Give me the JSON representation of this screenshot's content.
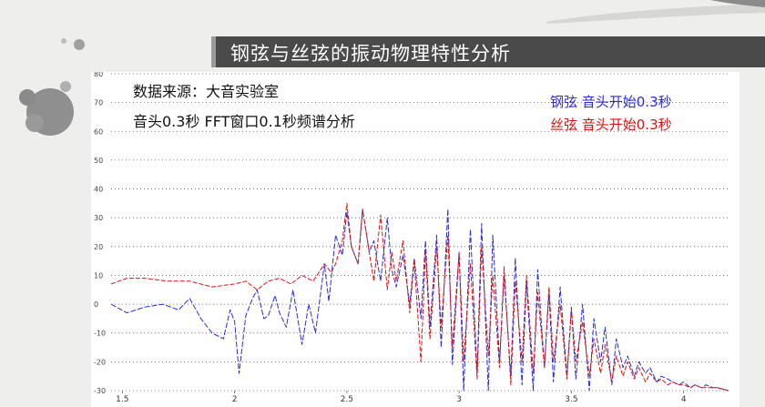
{
  "title": "钢弦与丝弦的振动物理特性分析",
  "notes": {
    "source": "数据来源：大音实验室",
    "method": "音头0.3秒 FFT窗口0.1秒频谱分析"
  },
  "colors": {
    "steel": "#2a2ae0",
    "silk": "#e01010",
    "title_bar": "#4a4a4a",
    "grid": "#555555"
  },
  "chart_data": {
    "type": "line",
    "title": "",
    "xlabel": "",
    "ylabel": "",
    "xlim": [
      1.45,
      4.2
    ],
    "ylim": [
      -30,
      80
    ],
    "x_ticks": [
      {
        "v": 1.5,
        "label": "1.5"
      },
      {
        "v": 2,
        "label": "2"
      },
      {
        "v": 2.5,
        "label": "2.5"
      },
      {
        "v": 3,
        "label": "3"
      },
      {
        "v": 3.5,
        "label": "3.5"
      },
      {
        "v": 4,
        "label": "4"
      }
    ],
    "y_ticks": [
      {
        "v": 80,
        "label": "80"
      },
      {
        "v": 70,
        "label": "70"
      },
      {
        "v": 60,
        "label": "60"
      },
      {
        "v": 50,
        "label": "50"
      },
      {
        "v": 40,
        "label": "40"
      },
      {
        "v": 30,
        "label": "30"
      },
      {
        "v": 20,
        "label": "20"
      },
      {
        "v": 10,
        "label": "10"
      },
      {
        "v": 0,
        "label": "0"
      },
      {
        "v": -10,
        "label": "-10"
      },
      {
        "v": -20,
        "label": "-20"
      },
      {
        "v": -30,
        "label": "-30"
      }
    ],
    "grid": "horizontal dotted",
    "legend": "top-right",
    "series": [
      {
        "name": "钢弦 音头开始0.3秒",
        "color": "#2a2ae0",
        "x": [
          1.45,
          1.52,
          1.6,
          1.68,
          1.75,
          1.8,
          1.85,
          1.9,
          1.95,
          1.98,
          2.0,
          2.02,
          2.05,
          2.08,
          2.1,
          2.13,
          2.15,
          2.18,
          2.2,
          2.23,
          2.26,
          2.3,
          2.33,
          2.36,
          2.4,
          2.42,
          2.45,
          2.48,
          2.5,
          2.52,
          2.55,
          2.57,
          2.6,
          2.62,
          2.65,
          2.68,
          2.7,
          2.72,
          2.75,
          2.78,
          2.8,
          2.83,
          2.85,
          2.87,
          2.9,
          2.92,
          2.95,
          2.97,
          3.0,
          3.02,
          3.05,
          3.08,
          3.1,
          3.13,
          3.15,
          3.18,
          3.2,
          3.23,
          3.25,
          3.28,
          3.3,
          3.33,
          3.35,
          3.38,
          3.4,
          3.42,
          3.45,
          3.48,
          3.5,
          3.52,
          3.55,
          3.58,
          3.6,
          3.63,
          3.65,
          3.68,
          3.7,
          3.73,
          3.75,
          3.78,
          3.8,
          3.83,
          3.85,
          3.88,
          3.9,
          3.93,
          3.95,
          3.98,
          4.0,
          4.03,
          4.05,
          4.08,
          4.1,
          4.13,
          4.15,
          4.2
        ],
        "y": [
          0,
          -3,
          -1,
          0,
          -2,
          2,
          -5,
          -10,
          -12,
          -2,
          -6,
          -24,
          -4,
          2,
          5,
          -5,
          -4,
          3,
          -3,
          -8,
          5,
          -14,
          0,
          -10,
          14,
          1,
          24,
          17,
          32,
          20,
          14,
          33,
          18,
          22,
          8,
          30,
          12,
          6,
          17,
          0,
          16,
          -5,
          22,
          -8,
          24,
          -15,
          33,
          -21,
          18,
          -30,
          26,
          -24,
          28,
          -30,
          24,
          -20,
          10,
          -25,
          16,
          -28,
          8,
          -30,
          12,
          -22,
          4,
          -27,
          6,
          -25,
          -1,
          -26,
          0,
          -30,
          -5,
          -20,
          -8,
          -28,
          -12,
          -22,
          -18,
          -25,
          -20,
          -24,
          -22,
          -27,
          -25,
          -26,
          -27,
          -28,
          -27,
          -29,
          -28,
          -29,
          -28,
          -29,
          -29,
          -30
        ]
      },
      {
        "name": "丝弦 音头开始0.3秒",
        "color": "#e01010",
        "x": [
          1.45,
          1.52,
          1.6,
          1.7,
          1.8,
          1.9,
          2.0,
          2.05,
          2.1,
          2.15,
          2.2,
          2.25,
          2.3,
          2.35,
          2.4,
          2.43,
          2.45,
          2.48,
          2.5,
          2.52,
          2.55,
          2.57,
          2.6,
          2.62,
          2.65,
          2.68,
          2.7,
          2.72,
          2.75,
          2.78,
          2.8,
          2.83,
          2.85,
          2.87,
          2.9,
          2.92,
          2.95,
          2.97,
          3.0,
          3.02,
          3.05,
          3.08,
          3.1,
          3.13,
          3.15,
          3.18,
          3.2,
          3.23,
          3.25,
          3.28,
          3.3,
          3.33,
          3.35,
          3.38,
          3.4,
          3.42,
          3.45,
          3.48,
          3.5,
          3.52,
          3.55,
          3.58,
          3.6,
          3.63,
          3.65,
          3.68,
          3.7,
          3.73,
          3.75,
          3.78,
          3.8,
          3.83,
          3.85,
          3.88,
          3.9,
          3.93,
          3.95,
          3.98,
          4.0,
          4.03,
          4.05,
          4.08,
          4.1,
          4.13,
          4.15,
          4.2
        ],
        "y": [
          7,
          9,
          9,
          8,
          8,
          6,
          7,
          8,
          5,
          8,
          9,
          7,
          10,
          8,
          14,
          11,
          14,
          22,
          35,
          20,
          14,
          33,
          18,
          8,
          31,
          5,
          18,
          8,
          22,
          -3,
          15,
          -20,
          19,
          -12,
          20,
          -8,
          24,
          -15,
          18,
          -20,
          14,
          -26,
          20,
          -18,
          10,
          -22,
          13,
          -28,
          8,
          -20,
          10,
          -24,
          4,
          -22,
          6,
          -20,
          0,
          -26,
          -2,
          -20,
          -6,
          -25,
          -12,
          -24,
          -14,
          -27,
          -18,
          -25,
          -20,
          -26,
          -22,
          -27,
          -24,
          -27,
          -26,
          -28,
          -27,
          -28,
          -28,
          -29,
          -28,
          -29,
          -29,
          -29,
          -29,
          -30
        ]
      }
    ]
  }
}
